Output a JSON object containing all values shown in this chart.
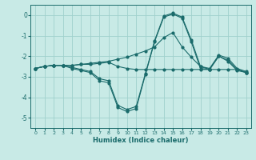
{
  "title": "",
  "xlabel": "Humidex (Indice chaleur)",
  "ylabel": "",
  "xlim": [
    -0.5,
    23.5
  ],
  "ylim": [
    -5.5,
    0.5
  ],
  "yticks": [
    0,
    -1,
    -2,
    -3,
    -4,
    -5
  ],
  "xticks": [
    0,
    1,
    2,
    3,
    4,
    5,
    6,
    7,
    8,
    9,
    10,
    11,
    12,
    13,
    14,
    15,
    16,
    17,
    18,
    19,
    20,
    21,
    22,
    23
  ],
  "background_color": "#c8eae6",
  "grid_color": "#a0d0cc",
  "line_color": "#1a6b6b",
  "line1_x": [
    0,
    1,
    2,
    3,
    4,
    5,
    6,
    7,
    8,
    9,
    10,
    11,
    12,
    13,
    14,
    15,
    16,
    17,
    18,
    19,
    20,
    21,
    22,
    23
  ],
  "line1_y": [
    -2.6,
    -2.5,
    -2.45,
    -2.45,
    -2.45,
    -2.4,
    -2.4,
    -2.35,
    -2.3,
    -2.5,
    -2.6,
    -2.65,
    -2.65,
    -2.65,
    -2.65,
    -2.65,
    -2.65,
    -2.65,
    -2.65,
    -2.65,
    -2.65,
    -2.65,
    -2.65,
    -2.8
  ],
  "line2_x": [
    0,
    1,
    2,
    3,
    4,
    5,
    6,
    7,
    8,
    9,
    10,
    11,
    12,
    13,
    14,
    15,
    16,
    17,
    18,
    19,
    20,
    21,
    22,
    23
  ],
  "line2_y": [
    -2.6,
    -2.5,
    -2.45,
    -2.45,
    -2.6,
    -2.7,
    -2.8,
    -3.2,
    -3.3,
    -4.5,
    -4.7,
    -4.55,
    -2.9,
    -1.3,
    -0.1,
    0.05,
    -0.15,
    -1.3,
    -2.6,
    -2.65,
    -2.0,
    -2.25,
    -2.7,
    -2.8
  ],
  "line3_x": [
    0,
    1,
    2,
    3,
    4,
    5,
    6,
    7,
    8,
    9,
    10,
    11,
    12,
    13,
    14,
    15,
    16,
    17,
    18,
    19,
    20,
    21,
    22,
    23
  ],
  "line3_y": [
    -2.6,
    -2.5,
    -2.45,
    -2.45,
    -2.45,
    -2.4,
    -2.35,
    -2.3,
    -2.25,
    -2.15,
    -2.05,
    -1.9,
    -1.75,
    -1.55,
    -1.1,
    -0.85,
    -1.55,
    -2.05,
    -2.5,
    -2.65,
    -2.0,
    -2.2,
    -2.65,
    -2.8
  ],
  "line4_x": [
    0,
    1,
    2,
    3,
    4,
    5,
    6,
    7,
    8,
    9,
    10,
    11,
    12,
    13,
    14,
    15,
    16,
    17,
    18,
    19,
    20,
    21,
    22,
    23
  ],
  "line4_y": [
    -2.6,
    -2.5,
    -2.45,
    -2.45,
    -2.55,
    -2.65,
    -2.75,
    -3.1,
    -3.2,
    -4.4,
    -4.6,
    -4.45,
    -2.85,
    -1.25,
    -0.05,
    0.1,
    -0.1,
    -1.2,
    -2.5,
    -2.6,
    -1.95,
    -2.1,
    -2.6,
    -2.75
  ]
}
